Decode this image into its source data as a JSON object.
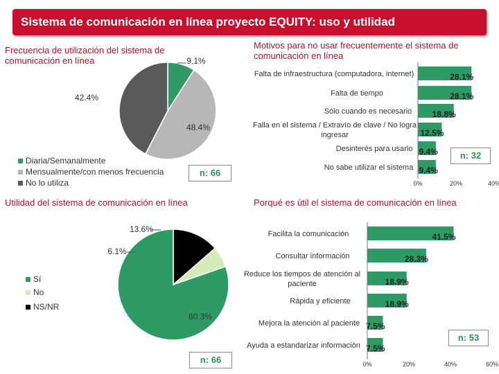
{
  "page_title": "Sistema de comunicación en línea proyecto EQUITY: uso y utilidad",
  "colors": {
    "accent": "#c8102e",
    "green": "#2e9a66",
    "lightgreen": "#d3ecb7",
    "gray": "#b7b7b7",
    "darkgray": "#595959",
    "black": "#000000"
  },
  "chart_data": [
    {
      "type": "pie",
      "title": "Frecuencia de utilización del sistema de comunicación en línea",
      "categories": [
        "Diaria/Semanalmente",
        "Mensualmente/con menos frecuencia",
        "No lo utiliza"
      ],
      "values": [
        9.1,
        48.4,
        42.4
      ],
      "value_labels": [
        "9.1%",
        "48.4%",
        "42.4%"
      ],
      "n_label": "n: 66",
      "legend": "bottom-left"
    },
    {
      "type": "bar",
      "orientation": "horizontal",
      "title": "Motivos para no usar frecuentemente el sistema de comunicación en línea",
      "categories": [
        "Falta de infraestructura (computadora, internet)",
        "Falta de tiempo",
        "Sólo cuando es necesario",
        "Falla en el sistema / Extravío de clave / No logra ingresar",
        "Desinterés para usarlo",
        "No sabe utilizar el sistema"
      ],
      "values": [
        28.1,
        28.1,
        18.8,
        12.5,
        9.4,
        9.4
      ],
      "value_labels": [
        "28.1%",
        "28.1%",
        "18.8%",
        "12.5%",
        "9.4%",
        "9.4%"
      ],
      "xlim": [
        0,
        40
      ],
      "ticks": [
        "0%",
        "20%",
        "40%"
      ],
      "n_label": "n: 32"
    },
    {
      "type": "pie",
      "title": "Utilidad del sistema de comunicación en línea",
      "categories": [
        "Sí",
        "No",
        "NS/NR"
      ],
      "values": [
        80.3,
        6.1,
        13.6
      ],
      "value_labels": [
        "80.3%",
        "6.1%",
        "13.6%"
      ],
      "n_label": "n: 66",
      "legend": "left"
    },
    {
      "type": "bar",
      "orientation": "horizontal",
      "title": "Porqué es útil el sistema de comunicación en línea",
      "categories": [
        "Facilita la comunicación",
        "Consultar información",
        "Reduce los tiempos de atención al paciente",
        "Rápida y eficiente",
        "Mejora la atención al paciente",
        "Ayuda a estandarizar información"
      ],
      "values": [
        41.5,
        28.3,
        18.9,
        18.9,
        7.5,
        7.5
      ],
      "value_labels": [
        "41.5%",
        "28.3%",
        "18.9%",
        "18.9%",
        "7.5%",
        "7.5%"
      ],
      "xlim": [
        0,
        60
      ],
      "ticks": [
        "0%",
        "20%",
        "40%",
        "60%"
      ],
      "n_label": "n: 53"
    }
  ]
}
